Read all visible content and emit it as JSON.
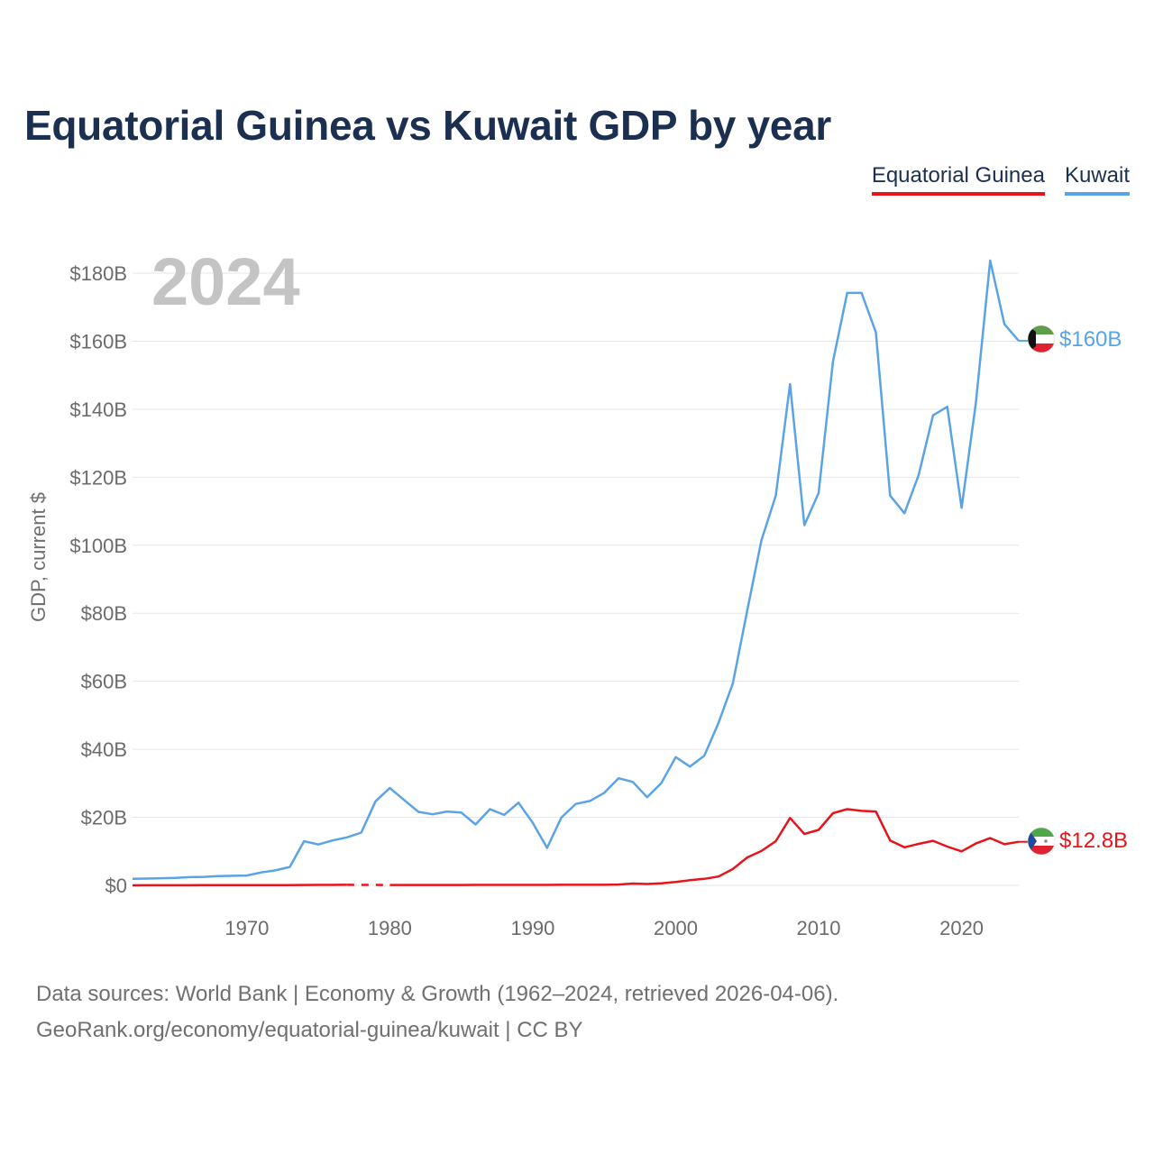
{
  "chart_data": {
    "type": "line",
    "title": "Equatorial Guinea vs Kuwait GDP by year",
    "ylabel": "GDP, current $",
    "xlabel": "",
    "year_label": "2024",
    "xlim": [
      1962,
      2024
    ],
    "ylim": [
      0,
      190
    ],
    "y_ticks": [
      0,
      20,
      40,
      60,
      80,
      100,
      120,
      140,
      160,
      180
    ],
    "y_tick_labels": [
      "$0",
      "$20B",
      "$40B",
      "$60B",
      "$80B",
      "$100B",
      "$120B",
      "$140B",
      "$160B",
      "$180B"
    ],
    "x_ticks": [
      1970,
      1980,
      1990,
      2000,
      2010,
      2020
    ],
    "x_tick_labels": [
      "1970",
      "1980",
      "1990",
      "2000",
      "2010",
      "2020"
    ],
    "grid": true,
    "legend_position": "top-right",
    "series": [
      {
        "name": "Equatorial Guinea",
        "color": "#e8141b",
        "end_label": "$12.8B",
        "flag": "equatorial-guinea-flag-icon",
        "x": [
          1962,
          1963,
          1964,
          1965,
          1966,
          1967,
          1968,
          1969,
          1970,
          1971,
          1972,
          1973,
          1974,
          1975,
          1976,
          1977,
          1978,
          1979,
          1980,
          1981,
          1982,
          1983,
          1984,
          1985,
          1986,
          1987,
          1988,
          1989,
          1990,
          1991,
          1992,
          1993,
          1994,
          1995,
          1996,
          1997,
          1998,
          1999,
          2000,
          2001,
          2002,
          2003,
          2004,
          2005,
          2006,
          2007,
          2008,
          2009,
          2010,
          2011,
          2012,
          2013,
          2014,
          2015,
          2016,
          2017,
          2018,
          2019,
          2020,
          2021,
          2022,
          2023,
          2024
        ],
        "values": [
          0.01,
          0.02,
          0.02,
          0.03,
          0.03,
          0.04,
          0.05,
          0.05,
          0.06,
          0.06,
          0.07,
          0.09,
          0.1,
          0.12,
          0.14,
          0.15,
          null,
          null,
          0.1,
          0.1,
          0.1,
          0.1,
          0.1,
          0.1,
          0.12,
          0.13,
          0.14,
          0.13,
          0.14,
          0.14,
          0.15,
          0.16,
          0.15,
          0.16,
          0.25,
          0.52,
          0.4,
          0.62,
          1.0,
          1.5,
          1.9,
          2.6,
          4.8,
          8.2,
          10.1,
          13.0,
          19.8,
          15.1,
          16.3,
          21.2,
          22.4,
          21.9,
          21.7,
          13.2,
          11.2,
          12.2,
          13.1,
          11.4,
          10.0,
          12.3,
          13.9,
          12.1,
          12.8
        ]
      },
      {
        "name": "Kuwait",
        "color": "#5aa3e6",
        "end_label": "$160B",
        "flag": "kuwait-flag-icon",
        "x": [
          1962,
          1963,
          1964,
          1965,
          1966,
          1967,
          1968,
          1969,
          1970,
          1971,
          1972,
          1973,
          1974,
          1975,
          1976,
          1977,
          1978,
          1979,
          1980,
          1981,
          1982,
          1983,
          1984,
          1985,
          1986,
          1987,
          1988,
          1989,
          1990,
          1991,
          1992,
          1993,
          1994,
          1995,
          1996,
          1997,
          1998,
          1999,
          2000,
          2001,
          2002,
          2003,
          2004,
          2005,
          2006,
          2007,
          2008,
          2009,
          2010,
          2011,
          2012,
          2013,
          2014,
          2015,
          2016,
          2017,
          2018,
          2019,
          2020,
          2021,
          2022,
          2023,
          2024
        ],
        "values": [
          1.9,
          2.0,
          2.1,
          2.2,
          2.4,
          2.5,
          2.7,
          2.8,
          2.9,
          3.8,
          4.4,
          5.4,
          13.0,
          12.0,
          13.2,
          14.1,
          15.5,
          24.7,
          28.6,
          25.1,
          21.6,
          20.9,
          21.7,
          21.4,
          17.9,
          22.4,
          20.7,
          24.3,
          18.4,
          11.0,
          19.9,
          23.9,
          24.8,
          27.2,
          31.5,
          30.4,
          25.9,
          30.1,
          37.7,
          34.9,
          38.1,
          47.8,
          59.4,
          80.8,
          101.5,
          114.6,
          147.4,
          105.9,
          115.4,
          154.0,
          174.2,
          174.2,
          162.6,
          114.6,
          109.4,
          120.7,
          138.2,
          140.7,
          111.0,
          141.8,
          183.7,
          165.0,
          160.1
        ]
      }
    ]
  },
  "footer": {
    "line1": "Data sources: World Bank | Economy & Growth (1962–2024, retrieved 2026-04-06).",
    "line2": "GeoRank.org/economy/equatorial-guinea/kuwait | CC BY"
  }
}
